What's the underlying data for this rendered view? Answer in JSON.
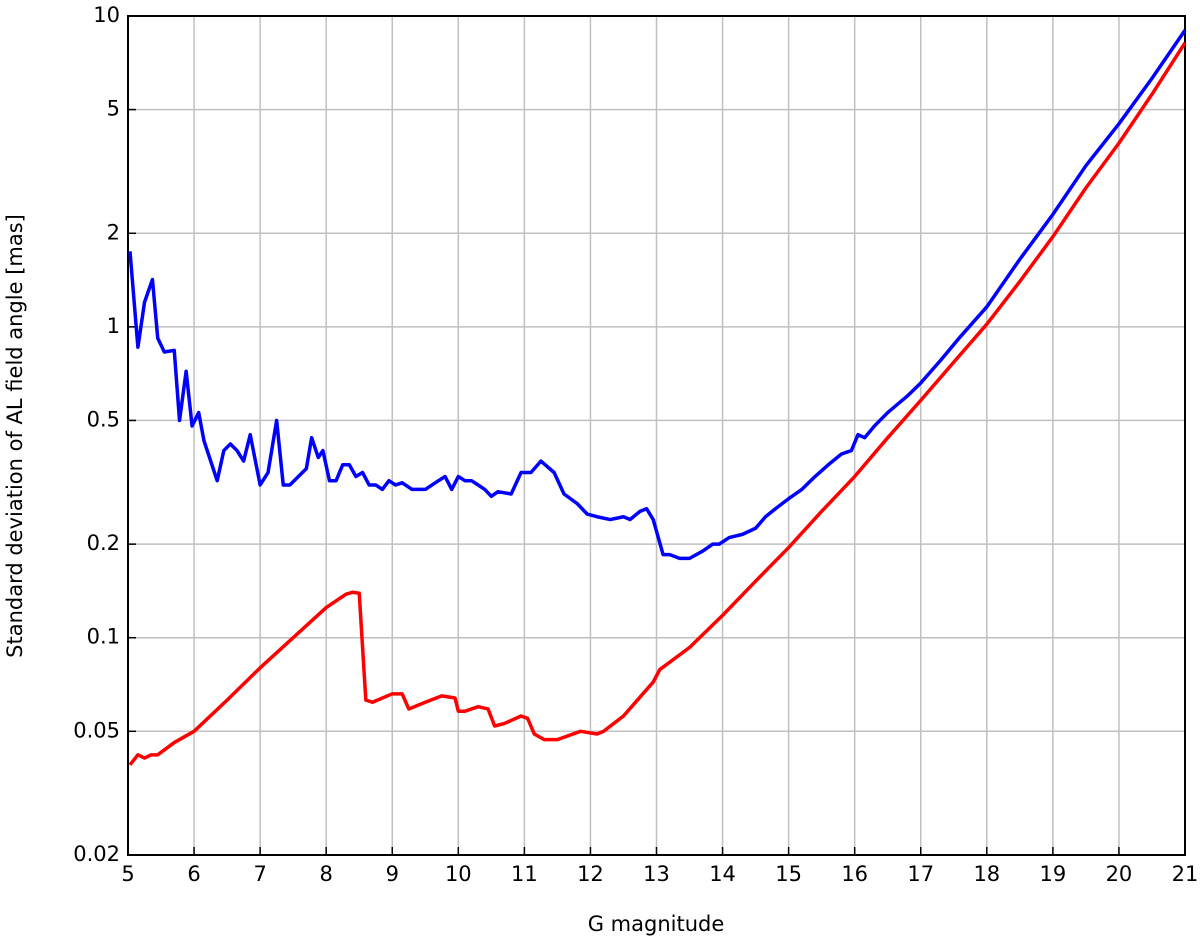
{
  "chart_data": {
    "type": "line",
    "xlabel": "G magnitude",
    "ylabel": "Standard deviation of AL field angle [mas]",
    "xlim": [
      5,
      21
    ],
    "xticks": [
      5,
      6,
      7,
      8,
      9,
      10,
      11,
      12,
      13,
      14,
      15,
      16,
      17,
      18,
      19,
      20,
      21
    ],
    "ylim": [
      0.02,
      10
    ],
    "yticks": [
      0.02,
      0.05,
      0.1,
      0.2,
      0.5,
      1,
      2,
      5,
      10
    ],
    "log_y": true,
    "grid": true,
    "series": [
      {
        "color": "#0000ff",
        "x": [
          5.03,
          5.15,
          5.25,
          5.37,
          5.45,
          5.55,
          5.7,
          5.78,
          5.88,
          5.97,
          6.07,
          6.15,
          6.35,
          6.45,
          6.55,
          6.65,
          6.75,
          6.85,
          7.0,
          7.12,
          7.25,
          7.35,
          7.45,
          7.7,
          7.78,
          7.88,
          7.95,
          8.05,
          8.15,
          8.25,
          8.35,
          8.45,
          8.55,
          8.65,
          8.75,
          8.85,
          8.95,
          9.05,
          9.15,
          9.3,
          9.5,
          9.7,
          9.8,
          9.9,
          10.0,
          10.1,
          10.2,
          10.3,
          10.4,
          10.5,
          10.6,
          10.8,
          10.95,
          11.1,
          11.25,
          11.45,
          11.6,
          11.8,
          11.95,
          12.1,
          12.3,
          12.5,
          12.6,
          12.75,
          12.85,
          12.95,
          13.1,
          13.2,
          13.35,
          13.5,
          13.7,
          13.85,
          13.95,
          14.1,
          14.3,
          14.5,
          14.65,
          14.8,
          15.0,
          15.2,
          15.4,
          15.6,
          15.8,
          15.95,
          16.05,
          16.15,
          16.3,
          16.5,
          16.8,
          17.0,
          17.3,
          17.6,
          18.0,
          18.5,
          19.0,
          19.5,
          20.0,
          20.5,
          21.0
        ],
        "values": [
          1.75,
          0.86,
          1.2,
          1.42,
          0.92,
          0.83,
          0.84,
          0.5,
          0.72,
          0.48,
          0.53,
          0.43,
          0.32,
          0.4,
          0.42,
          0.4,
          0.37,
          0.45,
          0.31,
          0.34,
          0.5,
          0.31,
          0.31,
          0.35,
          0.44,
          0.38,
          0.4,
          0.32,
          0.32,
          0.36,
          0.36,
          0.33,
          0.34,
          0.31,
          0.31,
          0.3,
          0.32,
          0.31,
          0.315,
          0.3,
          0.3,
          0.32,
          0.33,
          0.3,
          0.33,
          0.32,
          0.32,
          0.31,
          0.3,
          0.285,
          0.295,
          0.29,
          0.34,
          0.34,
          0.37,
          0.34,
          0.29,
          0.27,
          0.25,
          0.245,
          0.24,
          0.245,
          0.24,
          0.255,
          0.26,
          0.24,
          0.185,
          0.185,
          0.18,
          0.18,
          0.19,
          0.2,
          0.2,
          0.21,
          0.215,
          0.225,
          0.245,
          0.26,
          0.28,
          0.3,
          0.33,
          0.36,
          0.39,
          0.4,
          0.45,
          0.44,
          0.48,
          0.53,
          0.6,
          0.66,
          0.78,
          0.93,
          1.16,
          1.65,
          2.3,
          3.3,
          4.5,
          6.3,
          9.0
        ]
      },
      {
        "color": "#ff0000",
        "x": [
          5.03,
          5.15,
          5.25,
          5.35,
          5.45,
          5.7,
          6.0,
          6.5,
          7.0,
          7.5,
          8.0,
          8.3,
          8.4,
          8.5,
          8.6,
          8.7,
          9.0,
          9.15,
          9.25,
          9.5,
          9.75,
          9.95,
          10.0,
          10.1,
          10.3,
          10.45,
          10.55,
          10.7,
          10.95,
          11.05,
          11.15,
          11.3,
          11.5,
          11.85,
          12.1,
          12.2,
          12.5,
          12.95,
          13.05,
          13.5,
          14.0,
          14.5,
          15.0,
          15.5,
          16.0,
          16.5,
          17.0,
          17.5,
          18.0,
          18.5,
          19.0,
          19.5,
          20.0,
          20.5,
          21.0
        ],
        "values": [
          0.039,
          0.042,
          0.041,
          0.042,
          0.042,
          0.046,
          0.05,
          0.063,
          0.08,
          0.1,
          0.125,
          0.138,
          0.14,
          0.139,
          0.063,
          0.062,
          0.066,
          0.066,
          0.059,
          0.062,
          0.065,
          0.064,
          0.058,
          0.058,
          0.06,
          0.059,
          0.052,
          0.053,
          0.056,
          0.055,
          0.049,
          0.047,
          0.047,
          0.05,
          0.049,
          0.05,
          0.056,
          0.072,
          0.079,
          0.093,
          0.118,
          0.152,
          0.195,
          0.255,
          0.33,
          0.44,
          0.58,
          0.77,
          1.02,
          1.4,
          1.95,
          2.8,
          3.9,
          5.6,
          8.2
        ]
      }
    ]
  }
}
